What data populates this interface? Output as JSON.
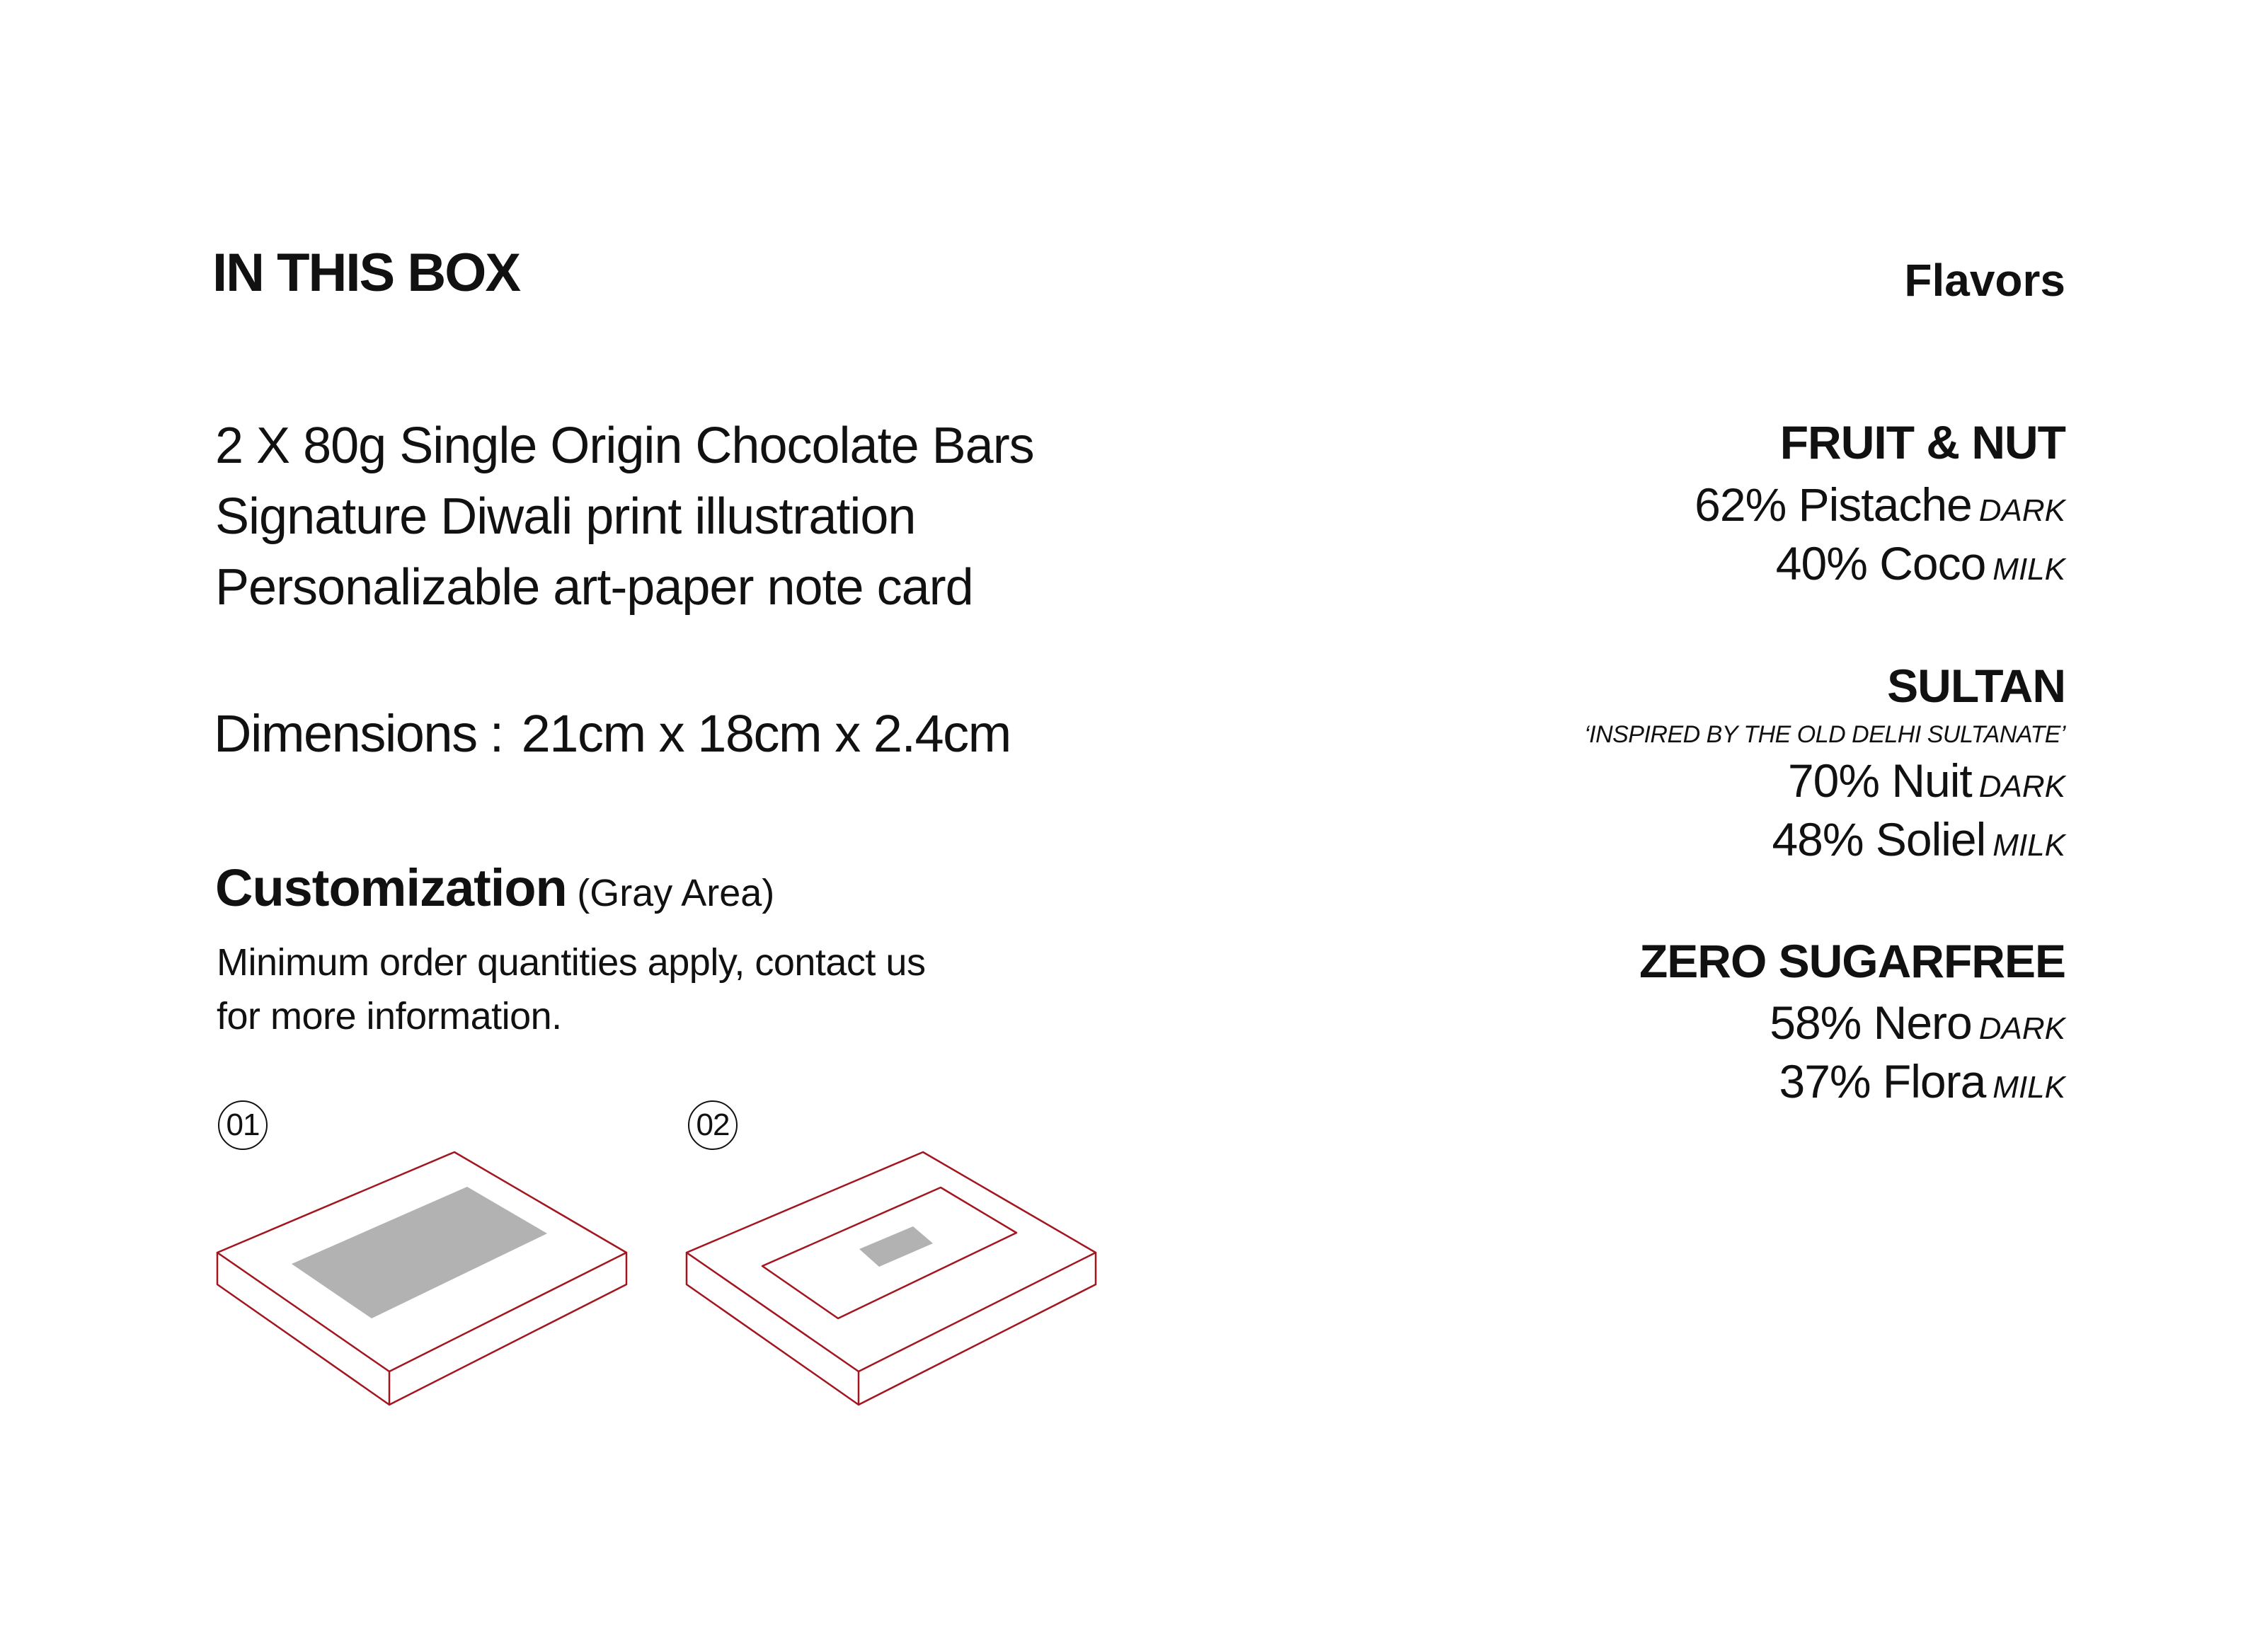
{
  "in_this_box": {
    "heading": "IN THIS BOX",
    "items": [
      "2 X 80g Single Origin Chocolate Bars",
      "Signature Diwali print illustration",
      "Personalizable art-paper note card"
    ]
  },
  "dimensions": {
    "label": "Dimensions",
    "separator": ":",
    "value": "21cm x 18cm x 2.4cm"
  },
  "customization": {
    "title": "Customization",
    "subtitle": "(Gray Area)",
    "note_lines": [
      "Minimum order quantities apply, contact us",
      "for more information."
    ],
    "options": [
      {
        "number": "01"
      },
      {
        "number": "02"
      }
    ]
  },
  "flavors": {
    "heading": "Flavors",
    "groups": [
      {
        "name": "FRUIT & NUT",
        "tagline": "",
        "items": [
          {
            "label": "62% Pistache",
            "type": "DARK"
          },
          {
            "label": "40% Coco",
            "type": "MILK"
          }
        ]
      },
      {
        "name": "SULTAN",
        "tagline": "‘INSPIRED BY THE  OLD DELHI SULTANATE’",
        "items": [
          {
            "label": "70% Nuit",
            "type": "DARK"
          },
          {
            "label": "48% Soliel",
            "type": "MILK"
          }
        ]
      },
      {
        "name": "ZERO SUGARFREE",
        "tagline": "",
        "items": [
          {
            "label": "58% Nero",
            "type": "DARK"
          },
          {
            "label": "37% Flora",
            "type": "MILK"
          }
        ]
      }
    ]
  },
  "colors": {
    "outline": "#a3151f",
    "customization_fill": "#b2b2b2",
    "text": "#111111",
    "background": "#ffffff"
  }
}
